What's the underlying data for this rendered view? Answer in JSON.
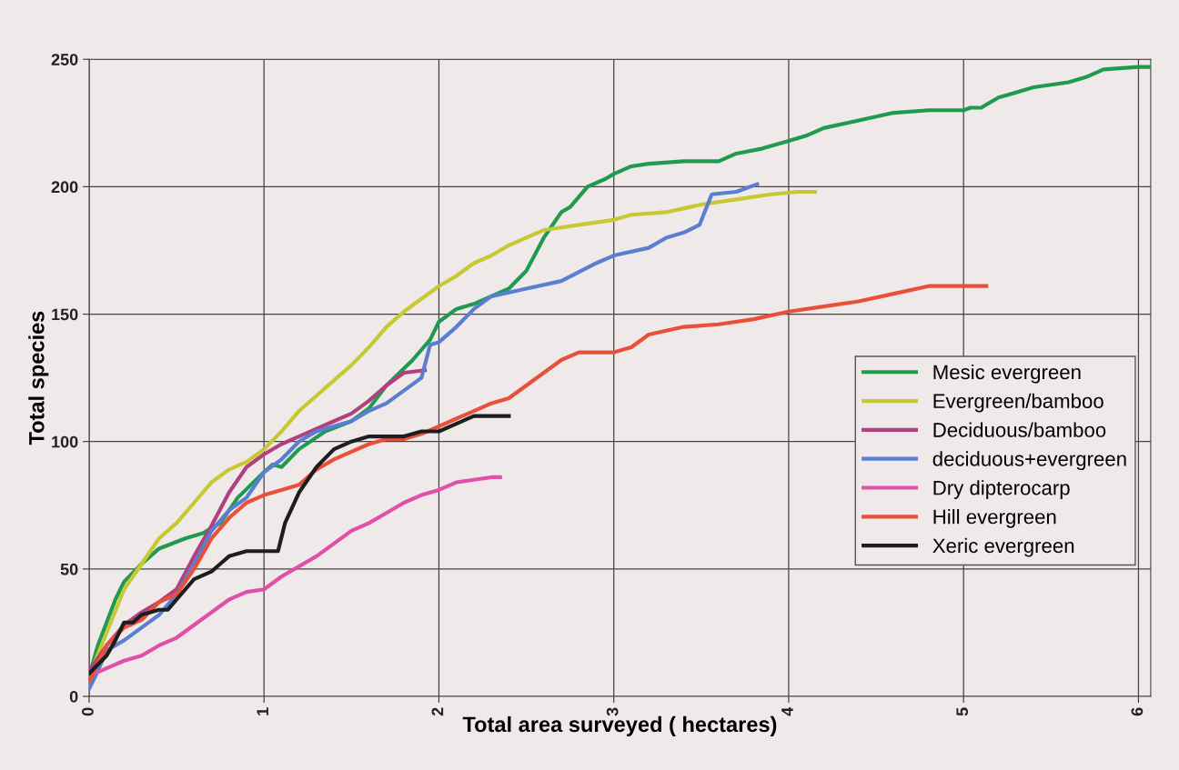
{
  "chart_data": {
    "type": "line",
    "xlabel": "Total area surveyed ( hectares)",
    "ylabel": "Total species",
    "xlim": [
      0,
      6.07
    ],
    "ylim": [
      0,
      250
    ],
    "xticks": [
      0,
      1,
      2,
      3,
      4,
      5,
      6
    ],
    "yticks": [
      0,
      50,
      100,
      150,
      200,
      250
    ],
    "grid": true,
    "legend": "right",
    "marker": "none",
    "line_style": "solid",
    "series": [
      {
        "name": "Mesic evergreen",
        "color": "#1f9a4f",
        "x": [
          0,
          0.05,
          0.15,
          0.2,
          0.3,
          0.4,
          0.55,
          0.65,
          0.75,
          0.85,
          1.0,
          1.05,
          1.1,
          1.2,
          1.35,
          1.5,
          1.6,
          1.7,
          1.85,
          1.95,
          2.0,
          2.1,
          2.2,
          2.3,
          2.4,
          2.5,
          2.6,
          2.7,
          2.75,
          2.85,
          2.95,
          3.0,
          3.1,
          3.2,
          3.4,
          3.6,
          3.7,
          3.85,
          4.0,
          4.1,
          4.2,
          4.4,
          4.6,
          4.8,
          5.0,
          5.04,
          5.1,
          5.2,
          5.3,
          5.4,
          5.6,
          5.7,
          5.8,
          6.0,
          6.06
        ],
        "values": [
          8,
          20,
          38,
          45,
          52,
          58,
          62,
          64,
          68,
          78,
          88,
          91,
          90,
          97,
          104,
          108,
          113,
          122,
          132,
          140,
          147,
          152,
          154,
          157,
          160,
          167,
          180,
          190,
          192,
          200,
          203,
          205,
          208,
          209,
          210,
          210,
          213,
          215,
          218,
          220,
          223,
          226,
          229,
          230,
          230,
          231,
          231,
          235,
          237,
          239,
          241,
          243,
          246,
          247,
          247
        ]
      },
      {
        "name": "Evergreen/bamboo",
        "color": "#c8c832",
        "x": [
          0,
          0.1,
          0.2,
          0.3,
          0.4,
          0.5,
          0.6,
          0.7,
          0.8,
          0.9,
          1.0,
          1.1,
          1.2,
          1.3,
          1.4,
          1.5,
          1.6,
          1.7,
          1.8,
          1.9,
          2.0,
          2.1,
          2.2,
          2.3,
          2.4,
          2.5,
          2.6,
          2.7,
          2.8,
          2.9,
          3.0,
          3.1,
          3.3,
          3.5,
          3.7,
          3.9,
          4.05,
          4.15
        ],
        "values": [
          8,
          25,
          42,
          52,
          62,
          68,
          76,
          84,
          89,
          92,
          97,
          104,
          112,
          118,
          124,
          130,
          137,
          145,
          151,
          156,
          161,
          165,
          170,
          173,
          177,
          180,
          183,
          184,
          185,
          186,
          187,
          189,
          190,
          193,
          195,
          197,
          198,
          198
        ]
      },
      {
        "name": "Deciduous/bamboo",
        "color": "#b0407e",
        "x": [
          0,
          0.1,
          0.2,
          0.3,
          0.4,
          0.5,
          0.6,
          0.7,
          0.8,
          0.9,
          1.0,
          1.1,
          1.2,
          1.3,
          1.4,
          1.5,
          1.6,
          1.7,
          1.8,
          1.92
        ],
        "values": [
          10,
          20,
          28,
          33,
          37,
          42,
          55,
          67,
          80,
          90,
          95,
          99,
          102,
          105,
          108,
          111,
          116,
          122,
          127,
          128
        ]
      },
      {
        "name": "deciduous+evergreen",
        "color": "#5a7ed0",
        "x": [
          0,
          0.05,
          0.1,
          0.2,
          0.3,
          0.4,
          0.5,
          0.6,
          0.7,
          0.8,
          0.9,
          1.0,
          1.1,
          1.2,
          1.3,
          1.5,
          1.6,
          1.7,
          1.8,
          1.9,
          1.95,
          2.0,
          2.1,
          2.2,
          2.3,
          2.5,
          2.7,
          2.9,
          3.0,
          3.2,
          3.3,
          3.4,
          3.49,
          3.56,
          3.7,
          3.82
        ],
        "values": [
          3,
          10,
          18,
          22,
          27,
          32,
          40,
          52,
          65,
          73,
          78,
          88,
          93,
          100,
          104,
          108,
          112,
          115,
          120,
          125,
          138,
          139,
          145,
          152,
          157,
          160,
          163,
          170,
          173,
          176,
          180,
          182,
          185,
          197,
          198,
          201
        ]
      },
      {
        "name": "Dry dipterocarp",
        "color": "#e050a8",
        "x": [
          0,
          0.1,
          0.2,
          0.3,
          0.4,
          0.5,
          0.6,
          0.7,
          0.8,
          0.9,
          1.0,
          1.1,
          1.2,
          1.3,
          1.4,
          1.5,
          1.6,
          1.7,
          1.8,
          1.9,
          2.0,
          2.1,
          2.2,
          2.3,
          2.35
        ],
        "values": [
          8,
          11,
          14,
          16,
          20,
          23,
          28,
          33,
          38,
          41,
          42,
          47,
          51,
          55,
          60,
          65,
          68,
          72,
          76,
          79,
          81,
          84,
          85,
          86,
          86
        ]
      },
      {
        "name": "Hill evergreen",
        "color": "#e8503c",
        "x": [
          0,
          0.1,
          0.2,
          0.3,
          0.4,
          0.5,
          0.6,
          0.7,
          0.8,
          0.9,
          1.0,
          1.1,
          1.2,
          1.3,
          1.4,
          1.5,
          1.6,
          1.7,
          1.8,
          1.9,
          2.0,
          2.1,
          2.2,
          2.3,
          2.4,
          2.5,
          2.6,
          2.7,
          2.8,
          2.9,
          3.0,
          3.1,
          3.2,
          3.4,
          3.6,
          3.8,
          4.0,
          4.2,
          4.4,
          4.6,
          4.8,
          5.0,
          5.13
        ],
        "values": [
          6,
          20,
          27,
          30,
          37,
          40,
          50,
          62,
          70,
          76,
          79,
          81,
          83,
          89,
          93,
          96,
          99,
          101,
          101,
          103,
          106,
          109,
          112,
          115,
          117,
          122,
          127,
          132,
          135,
          135,
          135,
          137,
          142,
          145,
          146,
          148,
          151,
          153,
          155,
          158,
          161,
          161,
          161
        ]
      },
      {
        "name": "Xeric evergreen",
        "color": "#1e1e1e",
        "x": [
          0,
          0.1,
          0.15,
          0.2,
          0.25,
          0.3,
          0.4,
          0.45,
          0.5,
          0.6,
          0.7,
          0.75,
          0.8,
          0.9,
          1.0,
          1.08,
          1.12,
          1.2,
          1.3,
          1.4,
          1.5,
          1.6,
          1.7,
          1.8,
          1.9,
          2.0,
          2.1,
          2.2,
          2.3,
          2.4
        ],
        "values": [
          9,
          16,
          22,
          29,
          29,
          32,
          34,
          34,
          38,
          46,
          49,
          52,
          55,
          57,
          57,
          57,
          68,
          80,
          90,
          97,
          100,
          102,
          102,
          102,
          104,
          104,
          107,
          110,
          110,
          110
        ]
      }
    ]
  }
}
